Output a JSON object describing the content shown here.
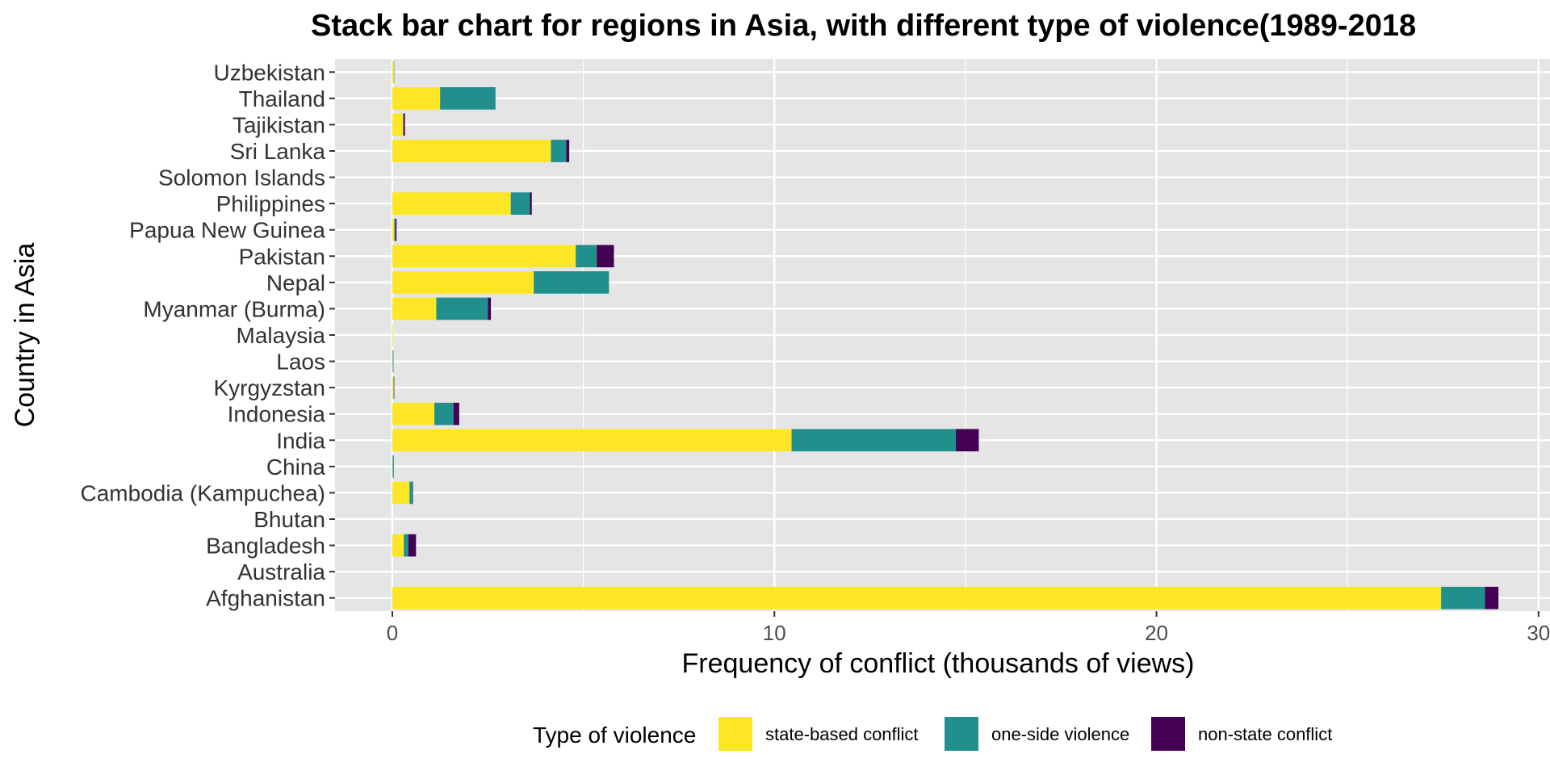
{
  "chart_data": {
    "type": "bar",
    "orientation": "horizontal",
    "stacked": true,
    "title": "Stack bar chart for regions in Asia, with different type of violence(1989-2018",
    "xlabel": "Frequency of conflict (thousands of views)",
    "ylabel": "Country in Asia",
    "xlim": [
      -1.5,
      30.3
    ],
    "xticks": [
      0,
      10,
      20,
      30
    ],
    "grid": true,
    "legend_position": "bottom",
    "legend_title": "Type of violence",
    "categories": [
      "Afghanistan",
      "Australia",
      "Bangladesh",
      "Bhutan",
      "Cambodia (Kampuchea)",
      "China",
      "India",
      "Indonesia",
      "Kyrgyzstan",
      "Laos",
      "Malaysia",
      "Myanmar (Burma)",
      "Nepal",
      "Pakistan",
      "Papua New Guinea",
      "Philippines",
      "Solomon Islands",
      "Sri Lanka",
      "Tajikistan",
      "Thailand",
      "Uzbekistan"
    ],
    "series": [
      {
        "name": "state-based conflict",
        "color": "#FDE725",
        "values": [
          27.45,
          0,
          0.3,
          0,
          0.45,
          0.01,
          10.45,
          1.1,
          0.03,
          0.01,
          0.02,
          1.15,
          3.7,
          4.8,
          0.05,
          3.1,
          0,
          4.15,
          0.28,
          1.25,
          0.04
        ]
      },
      {
        "name": "one-side violence",
        "color": "#21908C",
        "values": [
          1.15,
          0,
          0.12,
          0,
          0.08,
          0.03,
          4.3,
          0.5,
          0.01,
          0.02,
          0,
          1.35,
          1.97,
          0.55,
          0.03,
          0.5,
          0,
          0.4,
          0.01,
          1.45,
          0.01
        ]
      },
      {
        "name": "non-state conflict",
        "color": "#440154",
        "values": [
          0.35,
          0,
          0.2,
          0,
          0.01,
          0,
          0.6,
          0.15,
          0.01,
          0,
          0,
          0.08,
          0,
          0.45,
          0.03,
          0.05,
          0,
          0.08,
          0.04,
          0,
          0
        ]
      }
    ]
  },
  "style": {
    "panel_bg": "#E5E5E5",
    "grid_color": "#FFFFFF",
    "page_bg": "#FFFFFF"
  }
}
